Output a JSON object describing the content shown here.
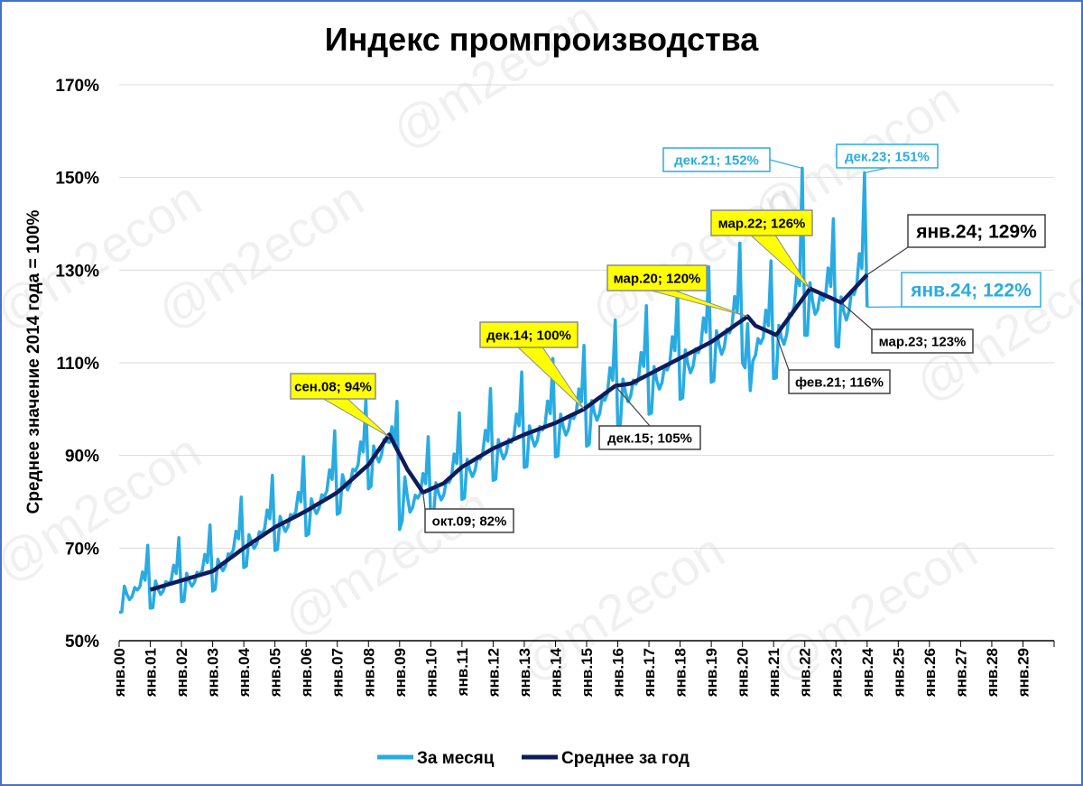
{
  "watermark": "@m2econ",
  "chart_data": {
    "type": "line",
    "title": "Индекс промпроизводства",
    "ylabel": "Среднее значение 2014 года = 100%",
    "xlabel": "",
    "ylim": [
      50,
      170
    ],
    "xlim": [
      "2000-01",
      "2030-01"
    ],
    "y_ticks": [
      "50%",
      "70%",
      "90%",
      "110%",
      "130%",
      "150%",
      "170%"
    ],
    "x_ticks": [
      "янв.00",
      "янв.01",
      "янв.02",
      "янв.03",
      "янв.04",
      "янв.05",
      "янв.06",
      "янв.07",
      "янв.08",
      "янв.09",
      "янв.10",
      "янв.11",
      "янв.12",
      "янв.13",
      "янв.14",
      "янв.15",
      "янв.16",
      "янв.17",
      "янв.18",
      "янв.19",
      "янв.20",
      "янв.21",
      "янв.22",
      "янв.23",
      "янв.24",
      "янв.25",
      "янв.26",
      "янв.27",
      "янв.28",
      "янв.29"
    ],
    "grid": "horizontal",
    "legend_position": "bottom",
    "series": [
      {
        "name": "За месяц",
        "color": "#29abe2",
        "pattern": [
          0.92,
          0.92,
          1.01,
          0.98,
          0.96,
          0.97,
          1.0,
          0.99,
          1.0,
          1.05,
          1.02,
          1.14
        ],
        "base_points": [
          [
            "2000-01",
            61
          ],
          [
            "2001-01",
            62
          ],
          [
            "2002-01",
            63.5
          ],
          [
            "2003-01",
            66
          ],
          [
            "2004-01",
            71.5
          ],
          [
            "2005-01",
            75.5
          ],
          [
            "2006-01",
            79
          ],
          [
            "2007-01",
            84
          ],
          [
            "2008-01",
            90
          ],
          [
            "2008-08",
            94
          ],
          [
            "2009-01",
            88
          ],
          [
            "2009-05",
            81
          ],
          [
            "2009-10",
            82
          ],
          [
            "2010-06",
            84
          ],
          [
            "2011-01",
            87.5
          ],
          [
            "2012-01",
            92
          ],
          [
            "2013-01",
            95
          ],
          [
            "2014-01",
            97.5
          ],
          [
            "2015-01",
            100
          ],
          [
            "2016-01",
            105
          ],
          [
            "2017-01",
            107.5
          ],
          [
            "2018-01",
            111
          ],
          [
            "2019-01",
            115
          ],
          [
            "2020-01",
            119.5
          ],
          [
            "2020-05",
            115
          ],
          [
            "2021-02",
            116
          ],
          [
            "2022-01",
            126
          ],
          [
            "2022-03",
            126
          ],
          [
            "2023-03",
            123
          ],
          [
            "2024-01",
            129
          ]
        ],
        "overrides": [
          [
            "2021-12",
            152
          ],
          [
            "2023-12",
            151
          ],
          [
            "2024-01",
            122
          ],
          [
            "2009-01",
            74
          ],
          [
            "2009-02",
            76
          ],
          [
            "2020-04",
            104
          ]
        ]
      },
      {
        "name": "Среднее за год",
        "color": "#0d1b5c",
        "start": "2001-01",
        "points": [
          [
            "2001-01",
            61
          ],
          [
            "2002-01",
            63
          ],
          [
            "2003-01",
            65
          ],
          [
            "2004-01",
            70
          ],
          [
            "2005-01",
            74.5
          ],
          [
            "2006-01",
            78
          ],
          [
            "2007-01",
            82
          ],
          [
            "2008-01",
            88
          ],
          [
            "2008-09",
            94.5
          ],
          [
            "2009-04",
            87
          ],
          [
            "2009-10",
            82
          ],
          [
            "2010-06",
            84
          ],
          [
            "2011-01",
            87.5
          ],
          [
            "2012-01",
            91.5
          ],
          [
            "2013-01",
            94.5
          ],
          [
            "2014-01",
            97
          ],
          [
            "2014-12",
            100
          ],
          [
            "2015-12",
            105
          ],
          [
            "2016-06",
            105.5
          ],
          [
            "2017-01",
            107.5
          ],
          [
            "2018-01",
            111
          ],
          [
            "2019-01",
            114.5
          ],
          [
            "2020-03",
            120
          ],
          [
            "2020-06",
            118
          ],
          [
            "2021-02",
            116
          ],
          [
            "2022-03",
            126
          ],
          [
            "2023-03",
            123
          ],
          [
            "2024-01",
            129
          ]
        ]
      }
    ],
    "annotations": [
      {
        "text": "сен.08; 94%",
        "x": "2008-09",
        "y": 94,
        "style": "yellow"
      },
      {
        "text": "дек.14; 100%",
        "x": "2014-12",
        "y": 100,
        "style": "yellow"
      },
      {
        "text": "мар.20; 120%",
        "x": "2020-03",
        "y": 120,
        "style": "yellow"
      },
      {
        "text": "мар.22; 126%",
        "x": "2022-03",
        "y": 126,
        "style": "yellow"
      },
      {
        "text": "окт.09; 82%",
        "x": "2009-10",
        "y": 82,
        "style": "dark"
      },
      {
        "text": "дек.15; 105%",
        "x": "2015-12",
        "y": 105,
        "style": "dark"
      },
      {
        "text": "фев.21; 116%",
        "x": "2021-02",
        "y": 116,
        "style": "dark"
      },
      {
        "text": "мар.23; 123%",
        "x": "2023-03",
        "y": 123,
        "style": "dark"
      },
      {
        "text": "янв.24; 129%",
        "x": "2024-01",
        "y": 129,
        "style": "dark-big"
      },
      {
        "text": "дек.21; 152%",
        "x": "2021-12",
        "y": 152,
        "style": "blue"
      },
      {
        "text": "дек.23; 151%",
        "x": "2023-12",
        "y": 151,
        "style": "blue"
      },
      {
        "text": "янв.24; 122%",
        "x": "2024-01",
        "y": 122,
        "style": "blue-big"
      }
    ]
  }
}
